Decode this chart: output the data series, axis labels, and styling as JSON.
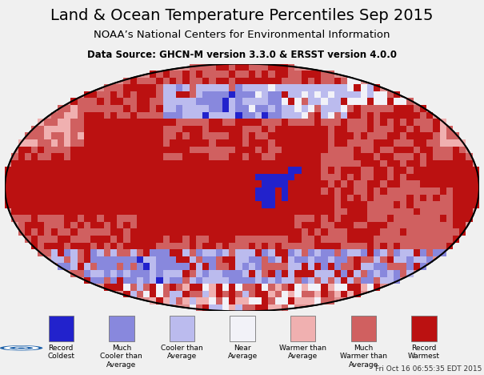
{
  "title": "Land & Ocean Temperature Percentiles Sep 2015",
  "subtitle": "NOAA’s National Centers for Environmental Information",
  "data_source": "Data Source: GHCN-M version 3.3.0 & ERSST version 4.0.0",
  "timestamp": "Fri Oct 16 06:55:35 EDT 2015",
  "background_color": "#f0f0f0",
  "map_bg_color": "#b0b0b0",
  "legend_items": [
    {
      "label": "Record\nColdest",
      "color": "#2222cc"
    },
    {
      "label": "Much\nCooler than\nAverage",
      "color": "#8888dd"
    },
    {
      "label": "Cooler than\nAverage",
      "color": "#bbbbee"
    },
    {
      "label": "Near\nAverage",
      "color": "#f2f2f8"
    },
    {
      "label": "Warmer than\nAverage",
      "color": "#f0b0b0"
    },
    {
      "label": "Much\nWarmer than\nAverage",
      "color": "#d06060"
    },
    {
      "label": "Record\nWarmest",
      "color": "#bb1111"
    }
  ],
  "cat_colors": [
    "#2222cc",
    "#8888dd",
    "#bbbbee",
    "#f2f2f8",
    "#f0b0b0",
    "#d06060",
    "#bb1111"
  ],
  "nodata_color": "#aaaaaa",
  "title_fontsize": 14,
  "subtitle_fontsize": 9.5,
  "datasource_fontsize": 8.5,
  "timestamp_fontsize": 6.5,
  "legend_fontsize": 6.5
}
